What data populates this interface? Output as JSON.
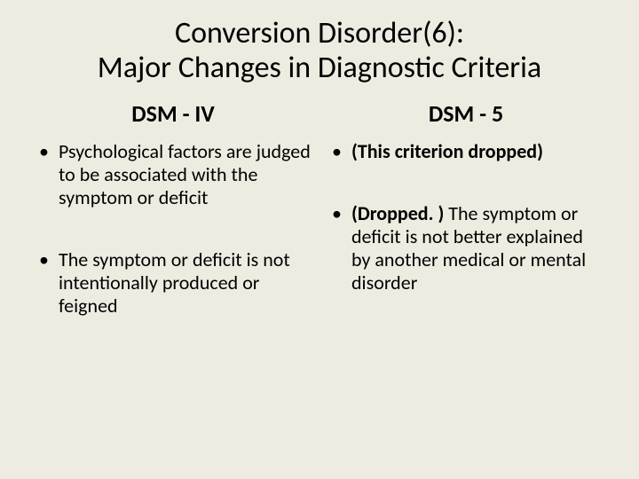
{
  "background_color": "#eeece1",
  "text_color": "#000000",
  "title_line1": "Conversion Disorder(6):",
  "title_line2": "Major Changes in Diagnostic Criteria",
  "left": {
    "header": "DSM - IV",
    "items": [
      {
        "text": "Psychological factors are judged to be associated with the symptom or deficit",
        "bold": false
      },
      {
        "text": "The symptom or deficit is not intentionally produced or feigned",
        "bold": false
      }
    ]
  },
  "right": {
    "header": "DSM - 5",
    "items": [
      {
        "text": "(This criterion dropped)",
        "bold": true
      },
      {
        "prefix": "(Dropped. ) ",
        "prefix_bold": true,
        "text": "The symptom or deficit is not better explained by another medical or mental disorder",
        "bold": false
      }
    ]
  },
  "typography": {
    "title_fontsize": 34,
    "header_fontsize": 26,
    "body_fontsize": 22,
    "font_family": "Calibri"
  }
}
